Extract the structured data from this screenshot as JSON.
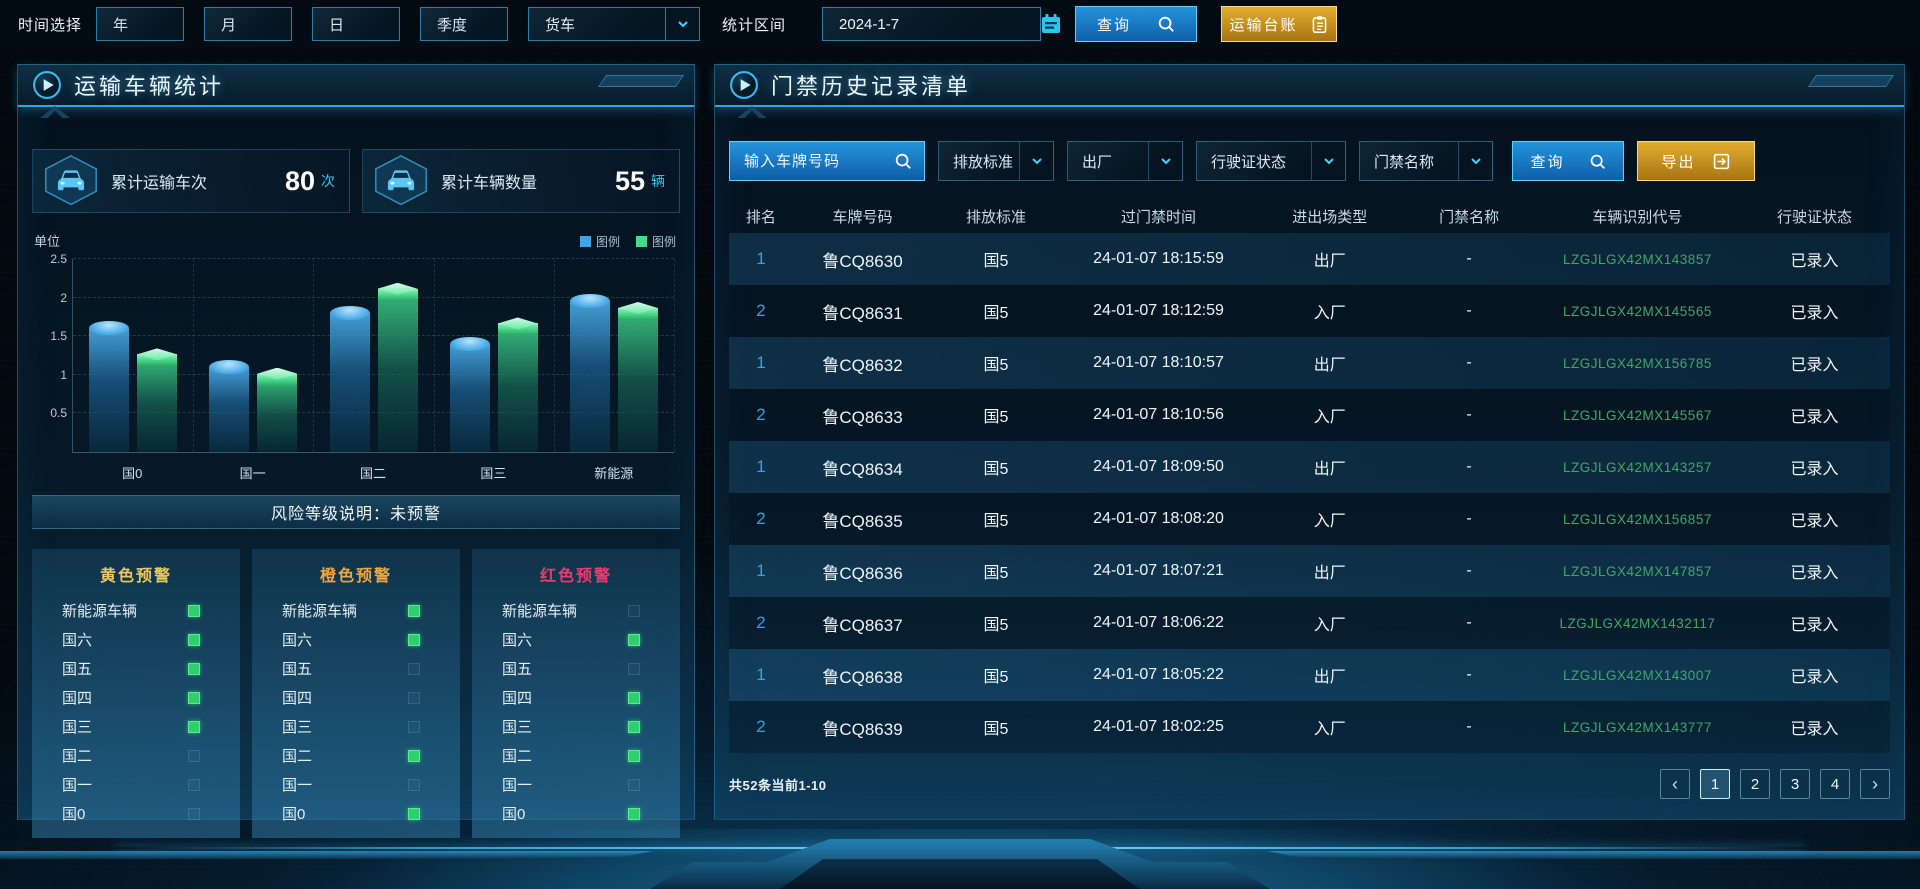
{
  "topbar": {
    "time_select_label": "时间选择",
    "period_buttons": [
      "年",
      "月",
      "日",
      "季度"
    ],
    "vehicle_type_value": "货车",
    "range_label": "统计区间",
    "date_value": "2024-1-7",
    "search_button": "查询",
    "ledger_button": "运输台账"
  },
  "left_panel": {
    "title": "运输车辆统计",
    "stat_cards": [
      {
        "label": "累计运输车次",
        "value": "80",
        "unit": "次"
      },
      {
        "label": "累计车辆数量",
        "value": "55",
        "unit": "辆"
      }
    ],
    "risk_banner": "风险等级说明：未预警",
    "warning_groups": [
      {
        "title": "黄色预警",
        "title_color": "#e9c95f",
        "items": [
          {
            "label": "新能源车辆",
            "checked": true
          },
          {
            "label": "国六",
            "checked": true
          },
          {
            "label": "国五",
            "checked": true
          },
          {
            "label": "国四",
            "checked": true
          },
          {
            "label": "国三",
            "checked": true
          },
          {
            "label": "国二",
            "checked": false
          },
          {
            "label": "国一",
            "checked": false
          },
          {
            "label": "国0",
            "checked": false
          }
        ]
      },
      {
        "title": "橙色预警",
        "title_color": "#f0a63c",
        "items": [
          {
            "label": "新能源车辆",
            "checked": true
          },
          {
            "label": "国六",
            "checked": true
          },
          {
            "label": "国五",
            "checked": false
          },
          {
            "label": "国四",
            "checked": false
          },
          {
            "label": "国三",
            "checked": false
          },
          {
            "label": "国二",
            "checked": true
          },
          {
            "label": "国一",
            "checked": false
          },
          {
            "label": "国0",
            "checked": true
          }
        ]
      },
      {
        "title": "红色预警",
        "title_color": "#ef3a6e",
        "items": [
          {
            "label": "新能源车辆",
            "checked": false
          },
          {
            "label": "国六",
            "checked": true
          },
          {
            "label": "国五",
            "checked": false
          },
          {
            "label": "国四",
            "checked": true
          },
          {
            "label": "国三",
            "checked": true
          },
          {
            "label": "国二",
            "checked": true
          },
          {
            "label": "国一",
            "checked": false
          },
          {
            "label": "国0",
            "checked": true
          }
        ]
      }
    ]
  },
  "chart_data": {
    "type": "bar",
    "title": "",
    "unit_label": "单位",
    "categories": [
      "国0",
      "国一",
      "国二",
      "国三",
      "新能源"
    ],
    "series": [
      {
        "name": "图例",
        "color": "#3ea6e8",
        "values": [
          1.6,
          1.1,
          1.8,
          1.4,
          1.95
        ]
      },
      {
        "name": "图例",
        "color": "#45d98c",
        "values": [
          1.2,
          0.95,
          2.05,
          1.6,
          1.8
        ]
      }
    ],
    "yticks": [
      "0.5",
      "1",
      "1.5",
      "2",
      "2.5"
    ],
    "ylim": [
      0,
      2.5
    ],
    "grid": true,
    "legend_position": "top-right"
  },
  "right_panel": {
    "title": "门禁历史记录清单",
    "filters": {
      "plate_placeholder": "输入车牌号码",
      "dropdowns": [
        "排放标准",
        "出厂",
        "行驶证状态",
        "门禁名称"
      ],
      "search_button": "查询",
      "export_button": "导出"
    },
    "table": {
      "headers": [
        "排名",
        "车牌号码",
        "排放标准",
        "过门禁时间",
        "进出场类型",
        "门禁名称",
        "车辆识别代号",
        "行驶证状态"
      ],
      "rows": [
        [
          "1",
          "鲁CQ8630",
          "国5",
          "24-01-07 18:15:59",
          "出厂",
          "-",
          "LZGJLGX42MX143857",
          "已录入"
        ],
        [
          "2",
          "鲁CQ8631",
          "国5",
          "24-01-07 18:12:59",
          "入厂",
          "-",
          "LZGJLGX42MX145565",
          "已录入"
        ],
        [
          "1",
          "鲁CQ8632",
          "国5",
          "24-01-07 18:10:57",
          "出厂",
          "-",
          "LZGJLGX42MX156785",
          "已录入"
        ],
        [
          "2",
          "鲁CQ8633",
          "国5",
          "24-01-07 18:10:56",
          "入厂",
          "-",
          "LZGJLGX42MX145567",
          "已录入"
        ],
        [
          "1",
          "鲁CQ8634",
          "国5",
          "24-01-07 18:09:50",
          "出厂",
          "-",
          "LZGJLGX42MX143257",
          "已录入"
        ],
        [
          "2",
          "鲁CQ8635",
          "国5",
          "24-01-07 18:08:20",
          "入厂",
          "-",
          "LZGJLGX42MX156857",
          "已录入"
        ],
        [
          "1",
          "鲁CQ8636",
          "国5",
          "24-01-07 18:07:21",
          "出厂",
          "-",
          "LZGJLGX42MX147857",
          "已录入"
        ],
        [
          "2",
          "鲁CQ8637",
          "国5",
          "24-01-07 18:06:22",
          "入厂",
          "-",
          "LZGJLGX42MX1432117",
          "已录入"
        ],
        [
          "1",
          "鲁CQ8638",
          "国5",
          "24-01-07 18:05:22",
          "出厂",
          "-",
          "LZGJLGX42MX143007",
          "已录入"
        ],
        [
          "2",
          "鲁CQ8639",
          "国5",
          "24-01-07 18:02:25",
          "入厂",
          "-",
          "LZGJLGX42MX143777",
          "已录入"
        ]
      ]
    },
    "pagination": {
      "summary": "共52条当前1-10",
      "prev": "‹",
      "pages": [
        "1",
        "2",
        "3",
        "4"
      ],
      "next": "›",
      "active_page": "1"
    }
  },
  "icons": {
    "panel_header": "play-circle-icon",
    "stat_card": "car-icon",
    "query": "search-icon",
    "ledger": "clipboard-icon",
    "date": "calendar-icon",
    "dropdown": "chevron-down-icon",
    "export": "export-icon",
    "pager_prev": "chevron-left-icon",
    "pager_next": "chevron-right-icon"
  },
  "colors": {
    "accent_cyan": "#35c8f5",
    "header_underline": "#2fa8e0",
    "button_blue": "#1787cf",
    "button_gold": "#cf9a1d",
    "vin_green": "#3fa868",
    "rank_blue": "#3b9fe0",
    "check_green": "#2ecf6e",
    "bar_blue": "#3ea6e8",
    "bar_green": "#45d98c"
  }
}
